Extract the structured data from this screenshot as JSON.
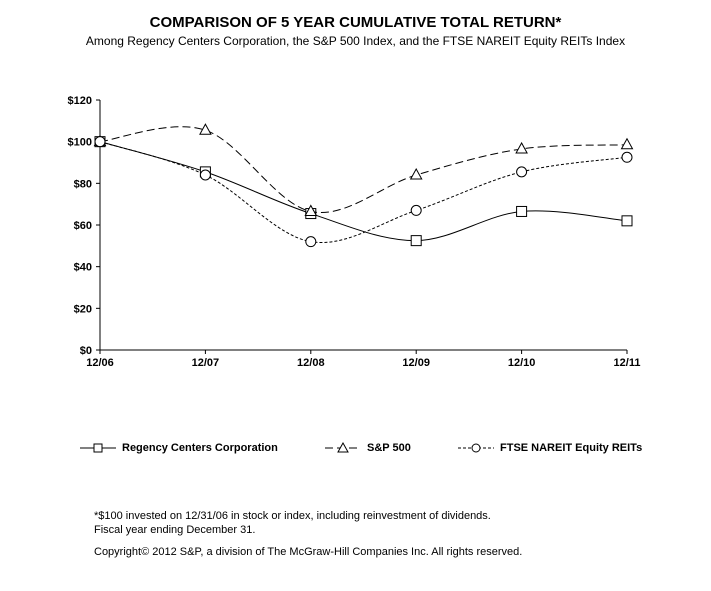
{
  "chart_data": {
    "type": "line",
    "title": "COMPARISON OF 5 YEAR CUMULATIVE TOTAL RETURN*",
    "subtitle": "Among Regency Centers Corporation, the S&P 500 Index, and the FTSE NAREIT Equity REITs  Index",
    "xlabel": "",
    "ylabel": "",
    "categories": [
      "12/06",
      "12/07",
      "12/08",
      "12/09",
      "12/10",
      "12/11"
    ],
    "ylim": [
      0,
      120
    ],
    "yticks": [
      "$0",
      "$20",
      "$40",
      "$60",
      "$80",
      "$100",
      "$120"
    ],
    "legend_position": "bottom",
    "series": [
      {
        "name": "Regency Centers Corporation",
        "marker": "square",
        "dash": "solid",
        "values": [
          100,
          85.5,
          65.5,
          52.5,
          66.5,
          62
        ]
      },
      {
        "name": "S&P 500",
        "marker": "triangle",
        "dash": "dashed",
        "values": [
          100,
          105.5,
          66.5,
          84,
          96.5,
          98.5
        ]
      },
      {
        "name": "FTSE NAREIT Equity REITs",
        "marker": "circle",
        "dash": "dotted",
        "values": [
          100,
          84,
          52,
          67,
          85.5,
          92.5
        ]
      }
    ]
  },
  "footnotes": {
    "line1": "*$100 invested on 12/31/06 in stock or index, including reinvestment of dividends.",
    "line2": "Fiscal year ending December 31.",
    "copyright": "Copyright© 2012 S&P, a division of The McGraw-Hill Companies Inc. All rights reserved."
  }
}
